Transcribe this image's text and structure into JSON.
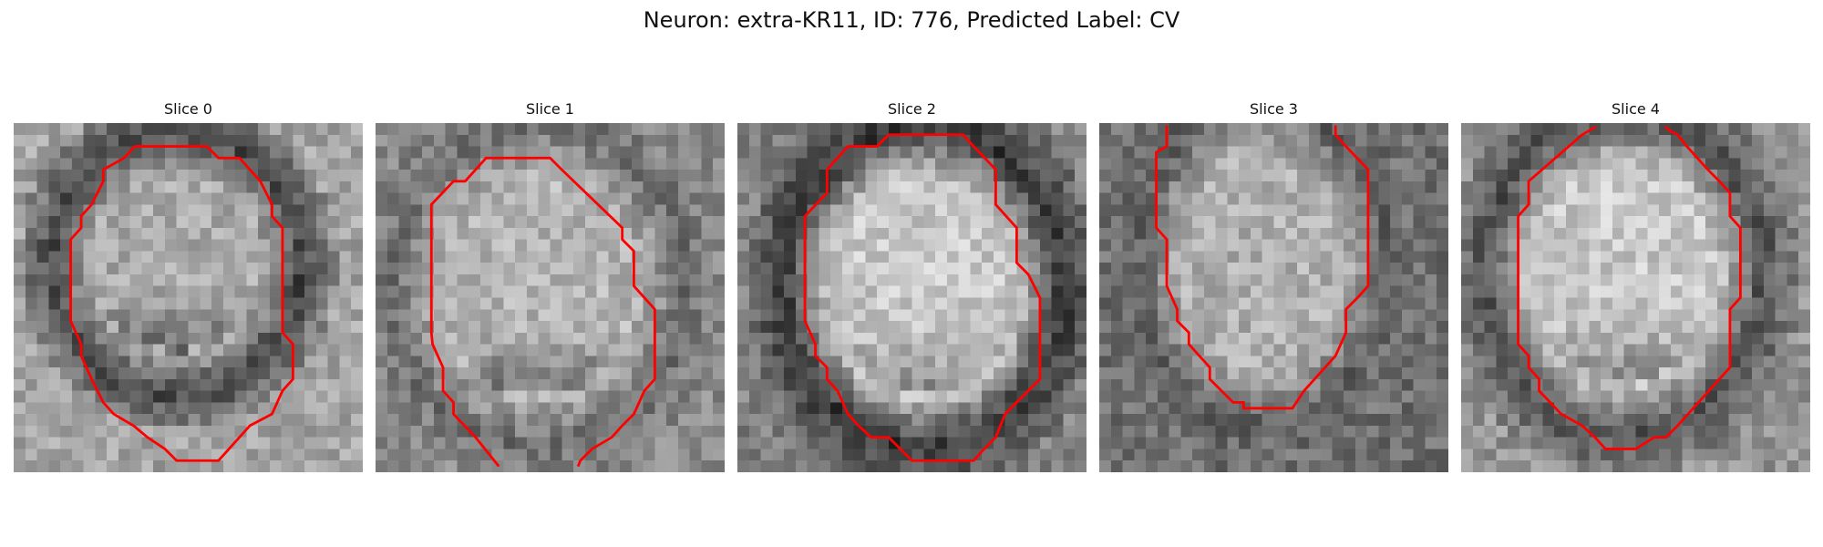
{
  "figure": {
    "title": "Neuron: extra-KR11, ID: 776, Predicted Label: CV"
  },
  "colors": {
    "background": "#ffffff",
    "contour": "#ff0000"
  },
  "image_kind": "grayscale microscopy slices with red cell-boundary contour",
  "slices": [
    {
      "title": "Slice 0"
    },
    {
      "title": "Slice 1"
    },
    {
      "title": "Slice 2"
    },
    {
      "title": "Slice 3"
    },
    {
      "title": "Slice 4"
    }
  ]
}
